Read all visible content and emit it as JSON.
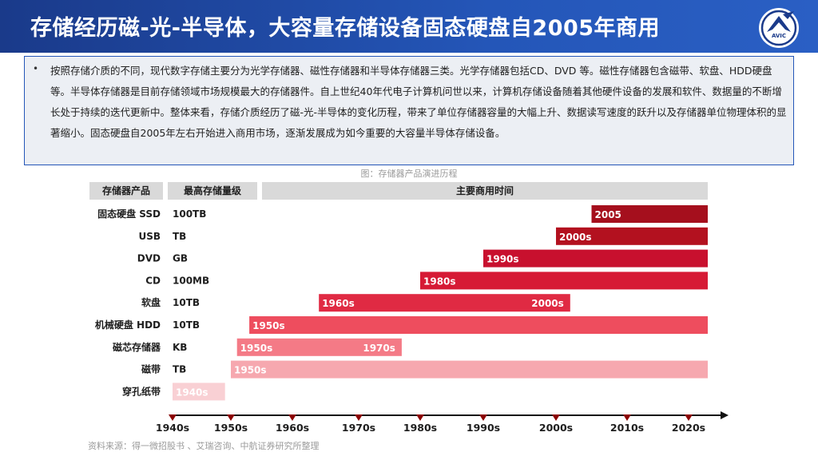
{
  "header": {
    "title": "存储经历磁-光-半导体，大容量存储设备固态硬盘自2005年商用",
    "logo_text": "AVIC"
  },
  "summary": {
    "bullet": "•",
    "text": "按照存储介质的不同，现代数字存储主要分为光学存储器、磁性存储器和半导体存储器三类。光学存储器包括CD、DVD 等。磁性存储器包含磁带、软盘、HDD硬盘等。半导体存储器是目前存储领域市场规模最大的存储器件。自上世纪40年代电子计算机问世以来，计算机存储设备随着其他硬件设备的发展和软件、数据量的不断增长处于持续的迭代更新中。整体来看，存储介质经历了磁-光-半导体的变化历程，带来了单位存储器容量的大幅上升、数据读写速度的跃升以及存储器单位物理体积的显著缩小。固态硬盘自2005年左右开始进入商用市场，逐渐发展成为如今重要的大容量半导体存储设备。"
  },
  "caption": "图：存储器产品演进历程",
  "source": "资料来源：得一微招股书 、艾瑞咨询、中航证券研究所整理",
  "chart_data": {
    "type": "timeline-bar",
    "headers": [
      "存储器产品",
      "最高存储量级",
      "主要商用时间"
    ],
    "x_ticks": [
      "1940s",
      "1950s",
      "1960s",
      "1970s",
      "1980s",
      "1990s",
      "2000s",
      "2010s",
      "2020s"
    ],
    "x_range": [
      1940,
      2025
    ],
    "rows": [
      {
        "product": "固态硬盘 SSD",
        "capacity": "100TB",
        "start": 2005,
        "end": 2025,
        "start_label": "2005",
        "end_label": "",
        "color": "#a50f1d"
      },
      {
        "product": "USB",
        "capacity": "TB",
        "start": 2000,
        "end": 2025,
        "start_label": "2000s",
        "end_label": "",
        "color": "#b3111f"
      },
      {
        "product": "DVD",
        "capacity": "GB",
        "start": 1990,
        "end": 2025,
        "start_label": "1990s",
        "end_label": "",
        "color": "#c8102e"
      },
      {
        "product": "CD",
        "capacity": "100MB",
        "start": 1980,
        "end": 2025,
        "start_label": "1980s",
        "end_label": "",
        "color": "#d61a35"
      },
      {
        "product": "软盘",
        "capacity": "10TB",
        "start": 1964,
        "end": 2002,
        "start_label": "1960s",
        "end_label": "2000s",
        "color": "#e02a43"
      },
      {
        "product": "机械硬盘 HDD",
        "capacity": "10TB",
        "start": 1953,
        "end": 2025,
        "start_label": "1950s",
        "end_label": "",
        "color": "#ee4d5e"
      },
      {
        "product": "磁芯存储器",
        "capacity": "KB",
        "start": 1951,
        "end": 1977,
        "start_label": "1950s",
        "end_label": "1970s",
        "color": "#f47a86"
      },
      {
        "product": "磁带",
        "capacity": "TB",
        "start": 1950,
        "end": 2025,
        "start_label": "1950s",
        "end_label": "",
        "color": "#f6a8af"
      },
      {
        "product": "穿孔纸带",
        "capacity": "",
        "start": 1940,
        "end": 1949,
        "start_label": "1940s",
        "end_label": "",
        "color": "#f9d0d4"
      }
    ]
  }
}
